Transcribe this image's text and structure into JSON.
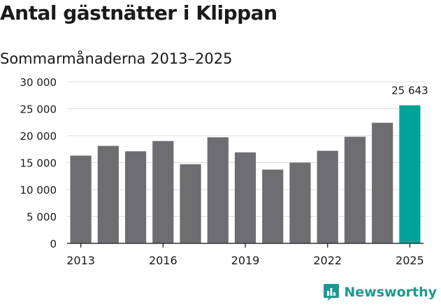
{
  "title": "Antal gästnätter i Klippan",
  "subtitle": "Sommarmånaderna 2013–2025",
  "brand": {
    "name": "Newsworthy",
    "icon": "newsworthy-logo-icon"
  },
  "colors": {
    "bar": "#6e6d72",
    "highlight": "#00a398",
    "grid": "#dddddd",
    "axis": "#333333",
    "brand": "#1c9a8f"
  },
  "chart_data": {
    "type": "bar",
    "title": "Antal gästnätter i Klippan",
    "subtitle": "Sommarmånaderna 2013–2025",
    "categories": [
      "2013",
      "2014",
      "2015",
      "2016",
      "2017",
      "2018",
      "2019",
      "2020",
      "2021",
      "2022",
      "2023",
      "2024",
      "2025"
    ],
    "values": [
      16300,
      18100,
      17100,
      19000,
      14700,
      19700,
      16900,
      13700,
      15000,
      17200,
      19800,
      22400,
      25643
    ],
    "highlight_index": 12,
    "annotation": {
      "index": 12,
      "label": "25 643"
    },
    "ylim": [
      0,
      30000
    ],
    "yticks": [
      0,
      5000,
      10000,
      15000,
      20000,
      25000,
      30000
    ],
    "ytick_labels": [
      "0",
      "5 000",
      "10 000",
      "15 000",
      "20 000",
      "25 000",
      "30 000"
    ],
    "xtick_labels": [
      "2013",
      "2016",
      "2019",
      "2022",
      "2025"
    ],
    "xtick_indices": [
      0,
      3,
      6,
      9,
      12
    ],
    "grid": true,
    "xlabel": "",
    "ylabel": ""
  }
}
